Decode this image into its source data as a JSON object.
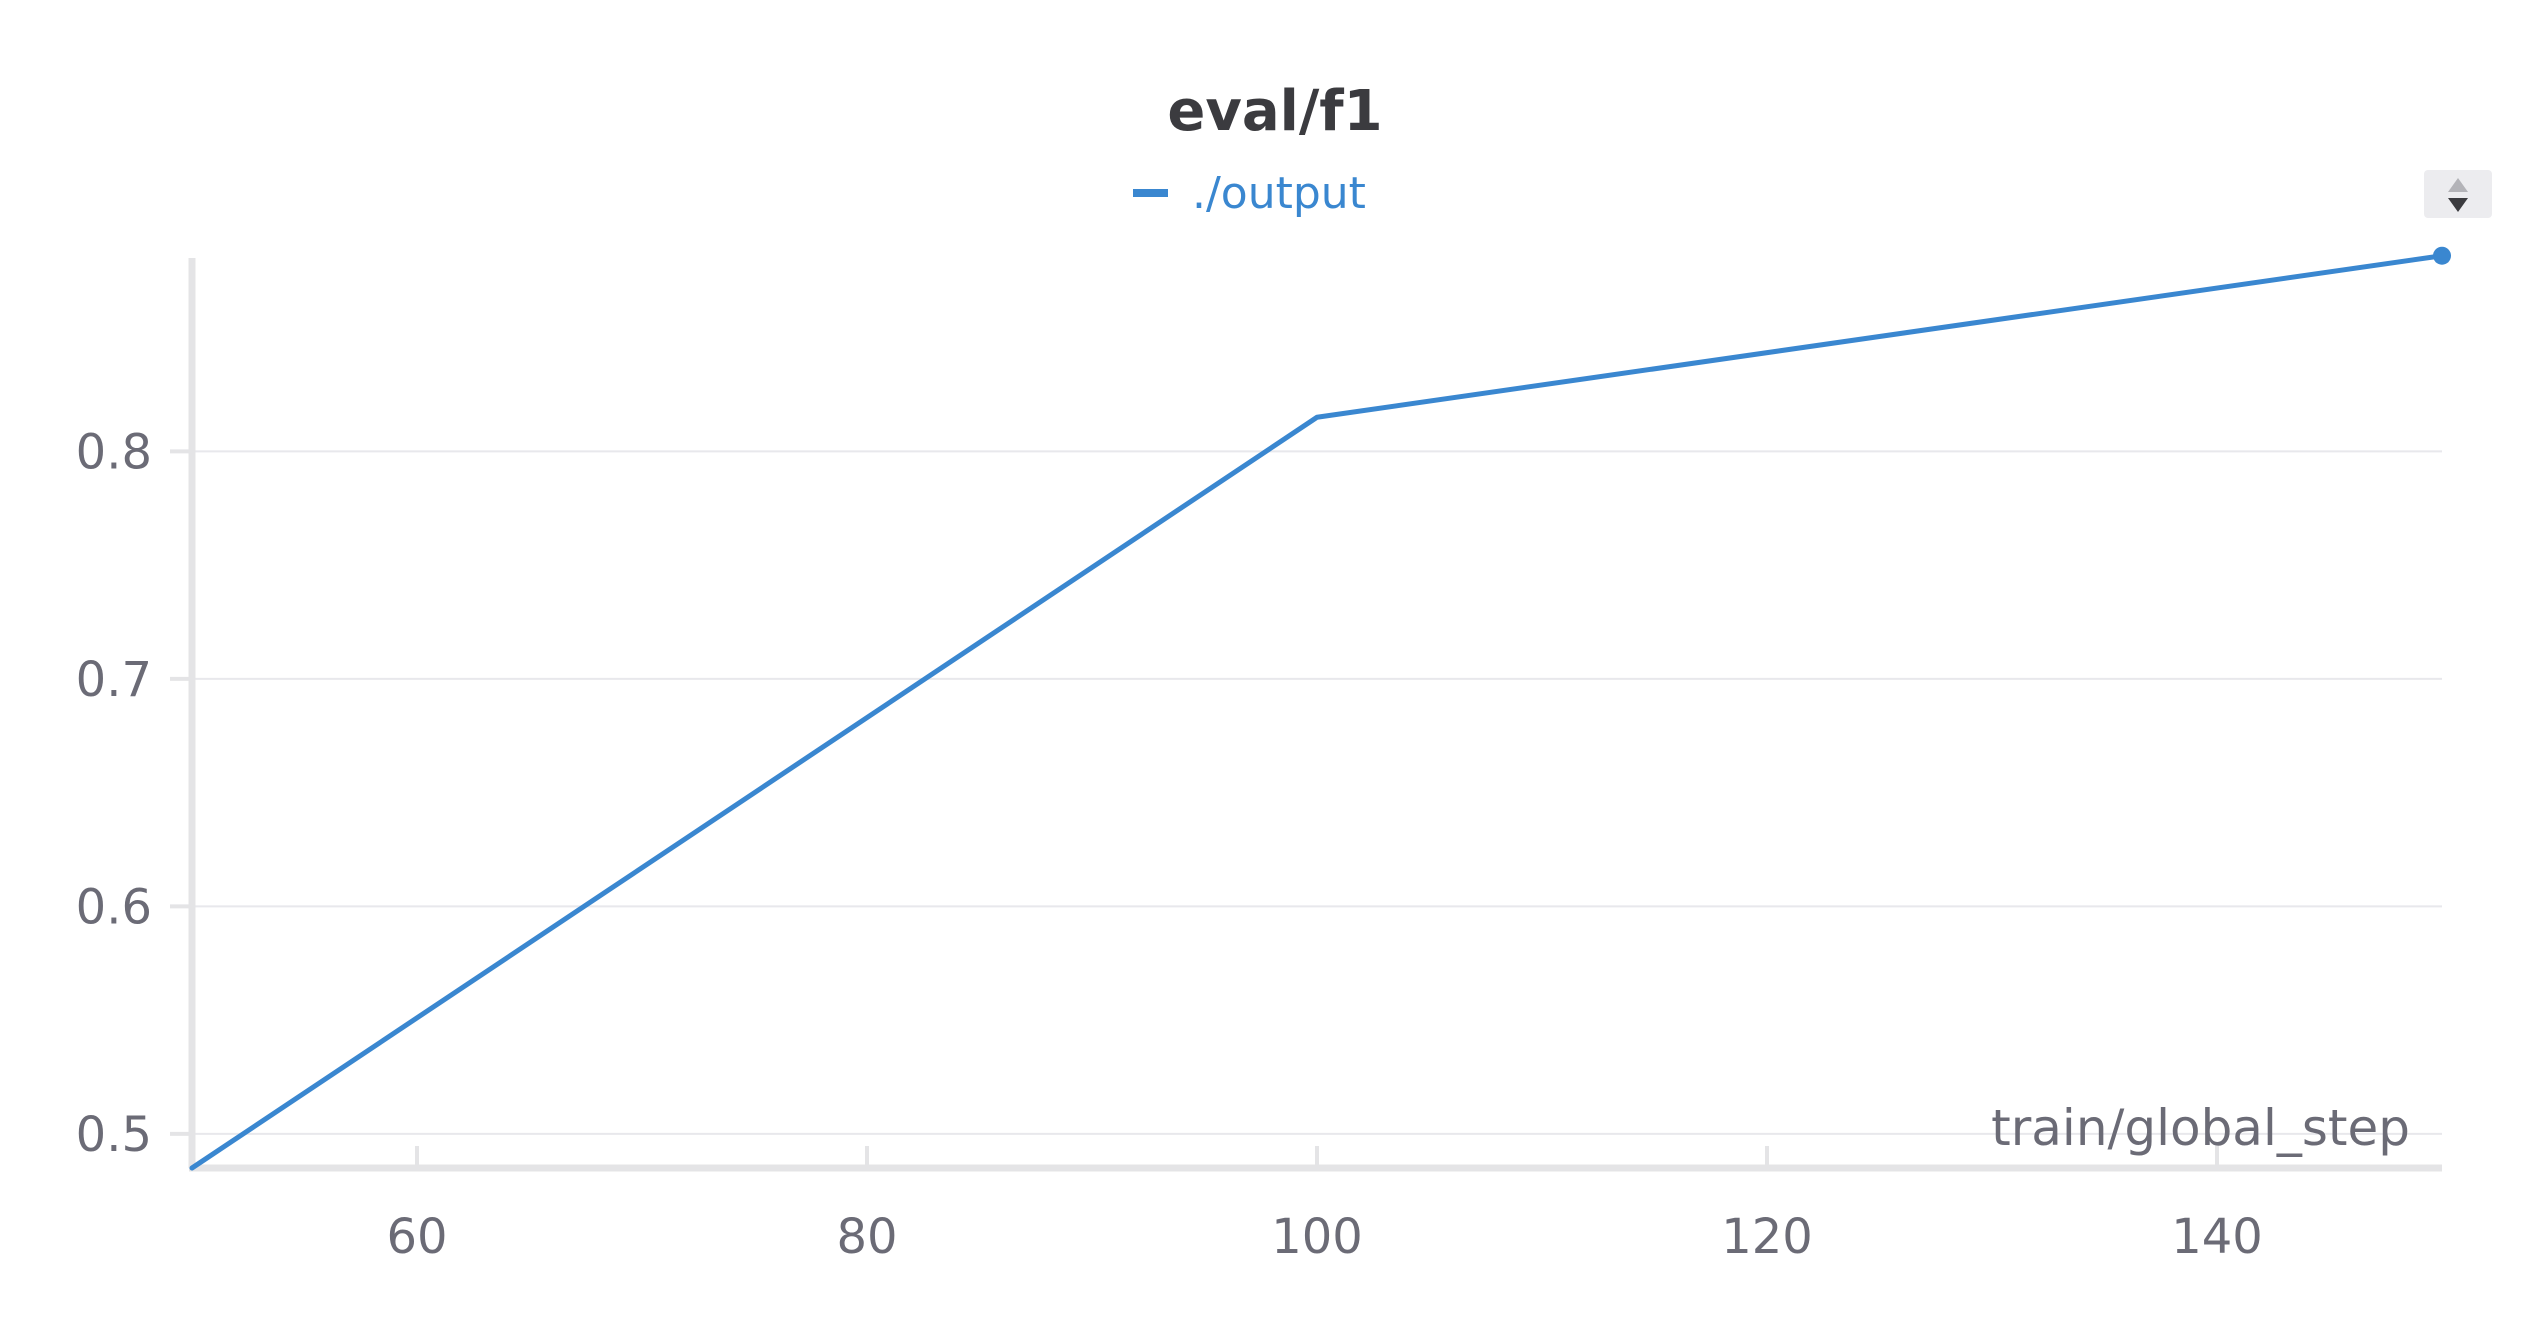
{
  "chart_data": {
    "type": "line",
    "title": "eval/f1",
    "xlabel": "train/global_step",
    "ylabel": "",
    "xlim": [
      50,
      150
    ],
    "ylim": [
      0.485,
      0.885
    ],
    "xticks": [
      60,
      80,
      100,
      120,
      140
    ],
    "yticks": [
      0.5,
      0.6,
      0.7,
      0.8
    ],
    "ytick_labels": [
      "0.5",
      "0.6",
      "0.7",
      "0.8"
    ],
    "xtick_labels": [
      "60",
      "80",
      "100",
      "120",
      "140"
    ],
    "grid": true,
    "legend_position": "top-center",
    "series": [
      {
        "name": "./output",
        "color": "#3a87d0",
        "x": [
          50,
          100,
          150
        ],
        "y": [
          0.485,
          0.815,
          0.886
        ]
      }
    ]
  },
  "controls": {
    "sort_toggle_icon": "sort-updown-icon"
  }
}
